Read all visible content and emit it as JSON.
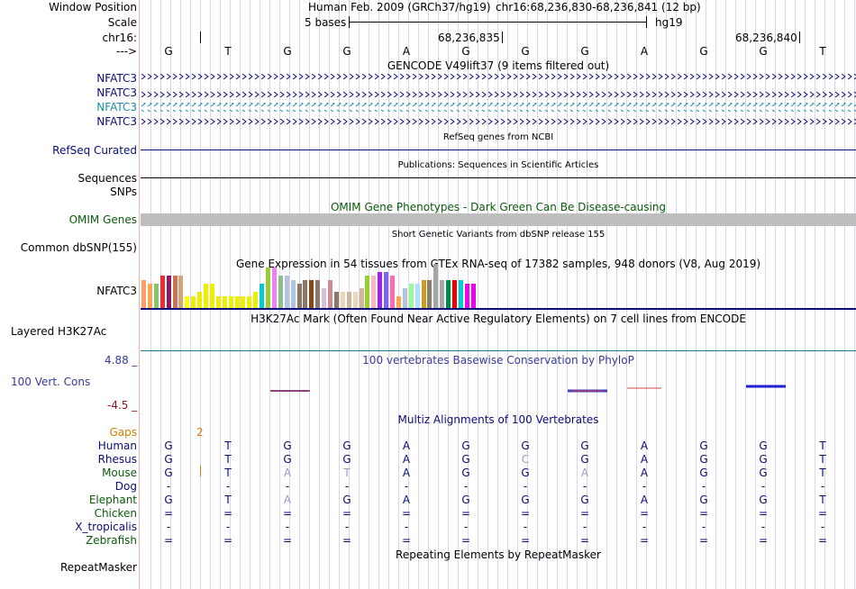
{
  "window_position": {
    "label": "Window Position",
    "assembly": "Human Feb. 2009 (GRCh37/hg19)",
    "range": "chr16:68,236,830-68,236,841 (12 bp)"
  },
  "scale": {
    "label": "Scale",
    "text": "5 bases",
    "assembly_tag": "hg19"
  },
  "chrom": {
    "label": "chr16:",
    "positions": [
      "68,236,835",
      "68,236,840"
    ]
  },
  "strand": {
    "label": "--->"
  },
  "sequence": [
    "G",
    "T",
    "G",
    "G",
    "A",
    "G",
    "G",
    "G",
    "A",
    "G",
    "G",
    "T"
  ],
  "gencode": {
    "title": "GENCODE V49lift37 (9 items filtered out)",
    "transcripts": [
      "NFATC3",
      "NFATC3",
      "NFATC3",
      "NFATC3"
    ]
  },
  "refseq": {
    "title": "RefSeq genes from NCBI",
    "label": "RefSeq Curated"
  },
  "publications": {
    "title": "Publications: Sequences in Scientific Articles",
    "label1": "Sequences",
    "label2": "SNPs"
  },
  "omim": {
    "title": "OMIM Gene Phenotypes - Dark Green Can Be Disease-causing",
    "label": "OMIM Genes"
  },
  "dbsnp": {
    "title": "Short Genetic Variants from dbSNP release 155",
    "label": "Common dbSNP(155)"
  },
  "gtex": {
    "title": "Gene Expression in 54 tissues from GTEx RNA-seq of 17382 samples, 948 donors (V8, Aug 2019)",
    "label": "NFATC3",
    "tissues": [
      {
        "value": 7,
        "color": "#ff9e66"
      },
      {
        "value": 6,
        "color": "#ffa54f"
      },
      {
        "value": 6,
        "color": "#88c46d"
      },
      {
        "value": 8,
        "color": "#ee2c2c"
      },
      {
        "value": 8,
        "color": "#8b1c62"
      },
      {
        "value": 8,
        "color": "#cd7054"
      },
      {
        "value": 8,
        "color": "#d2a479"
      },
      {
        "value": 3,
        "color": "#ffff00"
      },
      {
        "value": 3,
        "color": "#eeee00"
      },
      {
        "value": 4,
        "color": "#eeee00"
      },
      {
        "value": 6,
        "color": "#eeee00"
      },
      {
        "value": 6,
        "color": "#eeee00"
      },
      {
        "value": 3,
        "color": "#eeee00"
      },
      {
        "value": 3,
        "color": "#eeee00"
      },
      {
        "value": 3,
        "color": "#eeee00"
      },
      {
        "value": 3,
        "color": "#eeee00"
      },
      {
        "value": 3,
        "color": "#eeee00"
      },
      {
        "value": 3,
        "color": "#eeee00"
      },
      {
        "value": 4,
        "color": "#eeee00"
      },
      {
        "value": 6,
        "color": "#00cdcd"
      },
      {
        "value": 10,
        "color": "#9acd32"
      },
      {
        "value": 10,
        "color": "#ee82ee"
      },
      {
        "value": 8,
        "color": "#8fbc8f"
      },
      {
        "value": 8,
        "color": "#b0c4de"
      },
      {
        "value": 7,
        "color": "#b0c4de"
      },
      {
        "value": 6,
        "color": "#8b7765"
      },
      {
        "value": 7,
        "color": "#8b7765"
      },
      {
        "value": 7,
        "color": "#8b4513"
      },
      {
        "value": 7,
        "color": "#8b7765"
      },
      {
        "value": 5,
        "color": "#d8bfd8"
      },
      {
        "value": 7,
        "color": "#cd8c95"
      },
      {
        "value": 4,
        "color": "#8b7765"
      },
      {
        "value": 4,
        "color": "#eed5b7"
      },
      {
        "value": 4,
        "color": "#cdb79e"
      },
      {
        "value": 4,
        "color": "#eed5b7"
      },
      {
        "value": 5,
        "color": "#cdb79e"
      },
      {
        "value": 8,
        "color": "#9acd32"
      },
      {
        "value": 8,
        "color": "#ffb6c1"
      },
      {
        "value": 9,
        "color": "#a020f0"
      },
      {
        "value": 9,
        "color": "#7a67ee"
      },
      {
        "value": 8,
        "color": "#ff69b4"
      },
      {
        "value": 3,
        "color": "#ffa54f"
      },
      {
        "value": 5,
        "color": "#b0c4de"
      },
      {
        "value": 6,
        "color": "#98fb98"
      },
      {
        "value": 6,
        "color": "#b0e2ff"
      },
      {
        "value": 7,
        "color": "#cd9b1d"
      },
      {
        "value": 7,
        "color": "#8b7d6b"
      },
      {
        "value": 11,
        "color": "#a6a6a6"
      },
      {
        "value": 7,
        "color": "#a6a6a6"
      },
      {
        "value": 7,
        "color": "#008b45"
      },
      {
        "value": 7,
        "color": "#ee0000"
      },
      {
        "value": 7,
        "color": "#00cdcd"
      },
      {
        "value": 6,
        "color": "#ee00ee"
      },
      {
        "value": 6,
        "color": "#ee00ee"
      }
    ]
  },
  "h3k27ac": {
    "title": "H3K27Ac Mark (Often Found Near Active Regulatory Elements) on 7 cell lines from ENCODE",
    "label": "Layered H3K27Ac"
  },
  "phylop": {
    "title": "100 vertebrates Basewise Conservation by PhyloP",
    "label": "100 Vert. Cons",
    "ymax": "4.88 _",
    "ymin": "-4.5 _"
  },
  "multiz": {
    "title": "Multiz Alignments of 100 Vertebrates",
    "gaps_label": "Gaps",
    "gaps_value": "2",
    "species": [
      {
        "name": "Human",
        "bases": [
          "G",
          "T",
          "G",
          "G",
          "A",
          "G",
          "G",
          "G",
          "A",
          "G",
          "G",
          "T"
        ]
      },
      {
        "name": "Rhesus",
        "bases": [
          "G",
          "T",
          "G",
          "G",
          "A",
          "G",
          "C",
          "G",
          "A",
          "G",
          "G",
          "T"
        ]
      },
      {
        "name": "Mouse",
        "bases": [
          "G",
          "T",
          "A",
          "T",
          "A",
          "G",
          "G",
          "A",
          "A",
          "G",
          "G",
          "T"
        ]
      },
      {
        "name": "Dog",
        "bases": [
          "-",
          "-",
          "-",
          "-",
          "-",
          "-",
          "-",
          "-",
          "-",
          "-",
          "-",
          "-"
        ]
      },
      {
        "name": "Elephant",
        "bases": [
          "G",
          "T",
          "A",
          "G",
          "A",
          "G",
          "G",
          "G",
          "A",
          "G",
          "G",
          "T"
        ]
      },
      {
        "name": "Chicken",
        "bases": [
          "=",
          "=",
          "=",
          "=",
          "=",
          "=",
          "=",
          "=",
          "=",
          "=",
          "=",
          "="
        ]
      },
      {
        "name": "X_tropicalis",
        "bases": [
          "-",
          "-",
          "-",
          "-",
          "-",
          "-",
          "-",
          "-",
          "-",
          "-",
          "-",
          "-"
        ]
      },
      {
        "name": "Zebrafish",
        "bases": [
          "=",
          "=",
          "=",
          "=",
          "=",
          "=",
          "=",
          "=",
          "=",
          "=",
          "=",
          "="
        ]
      }
    ]
  },
  "repeatmasker": {
    "title": "Repeating Elements by RepeatMasker",
    "label": "RepeatMasker"
  }
}
